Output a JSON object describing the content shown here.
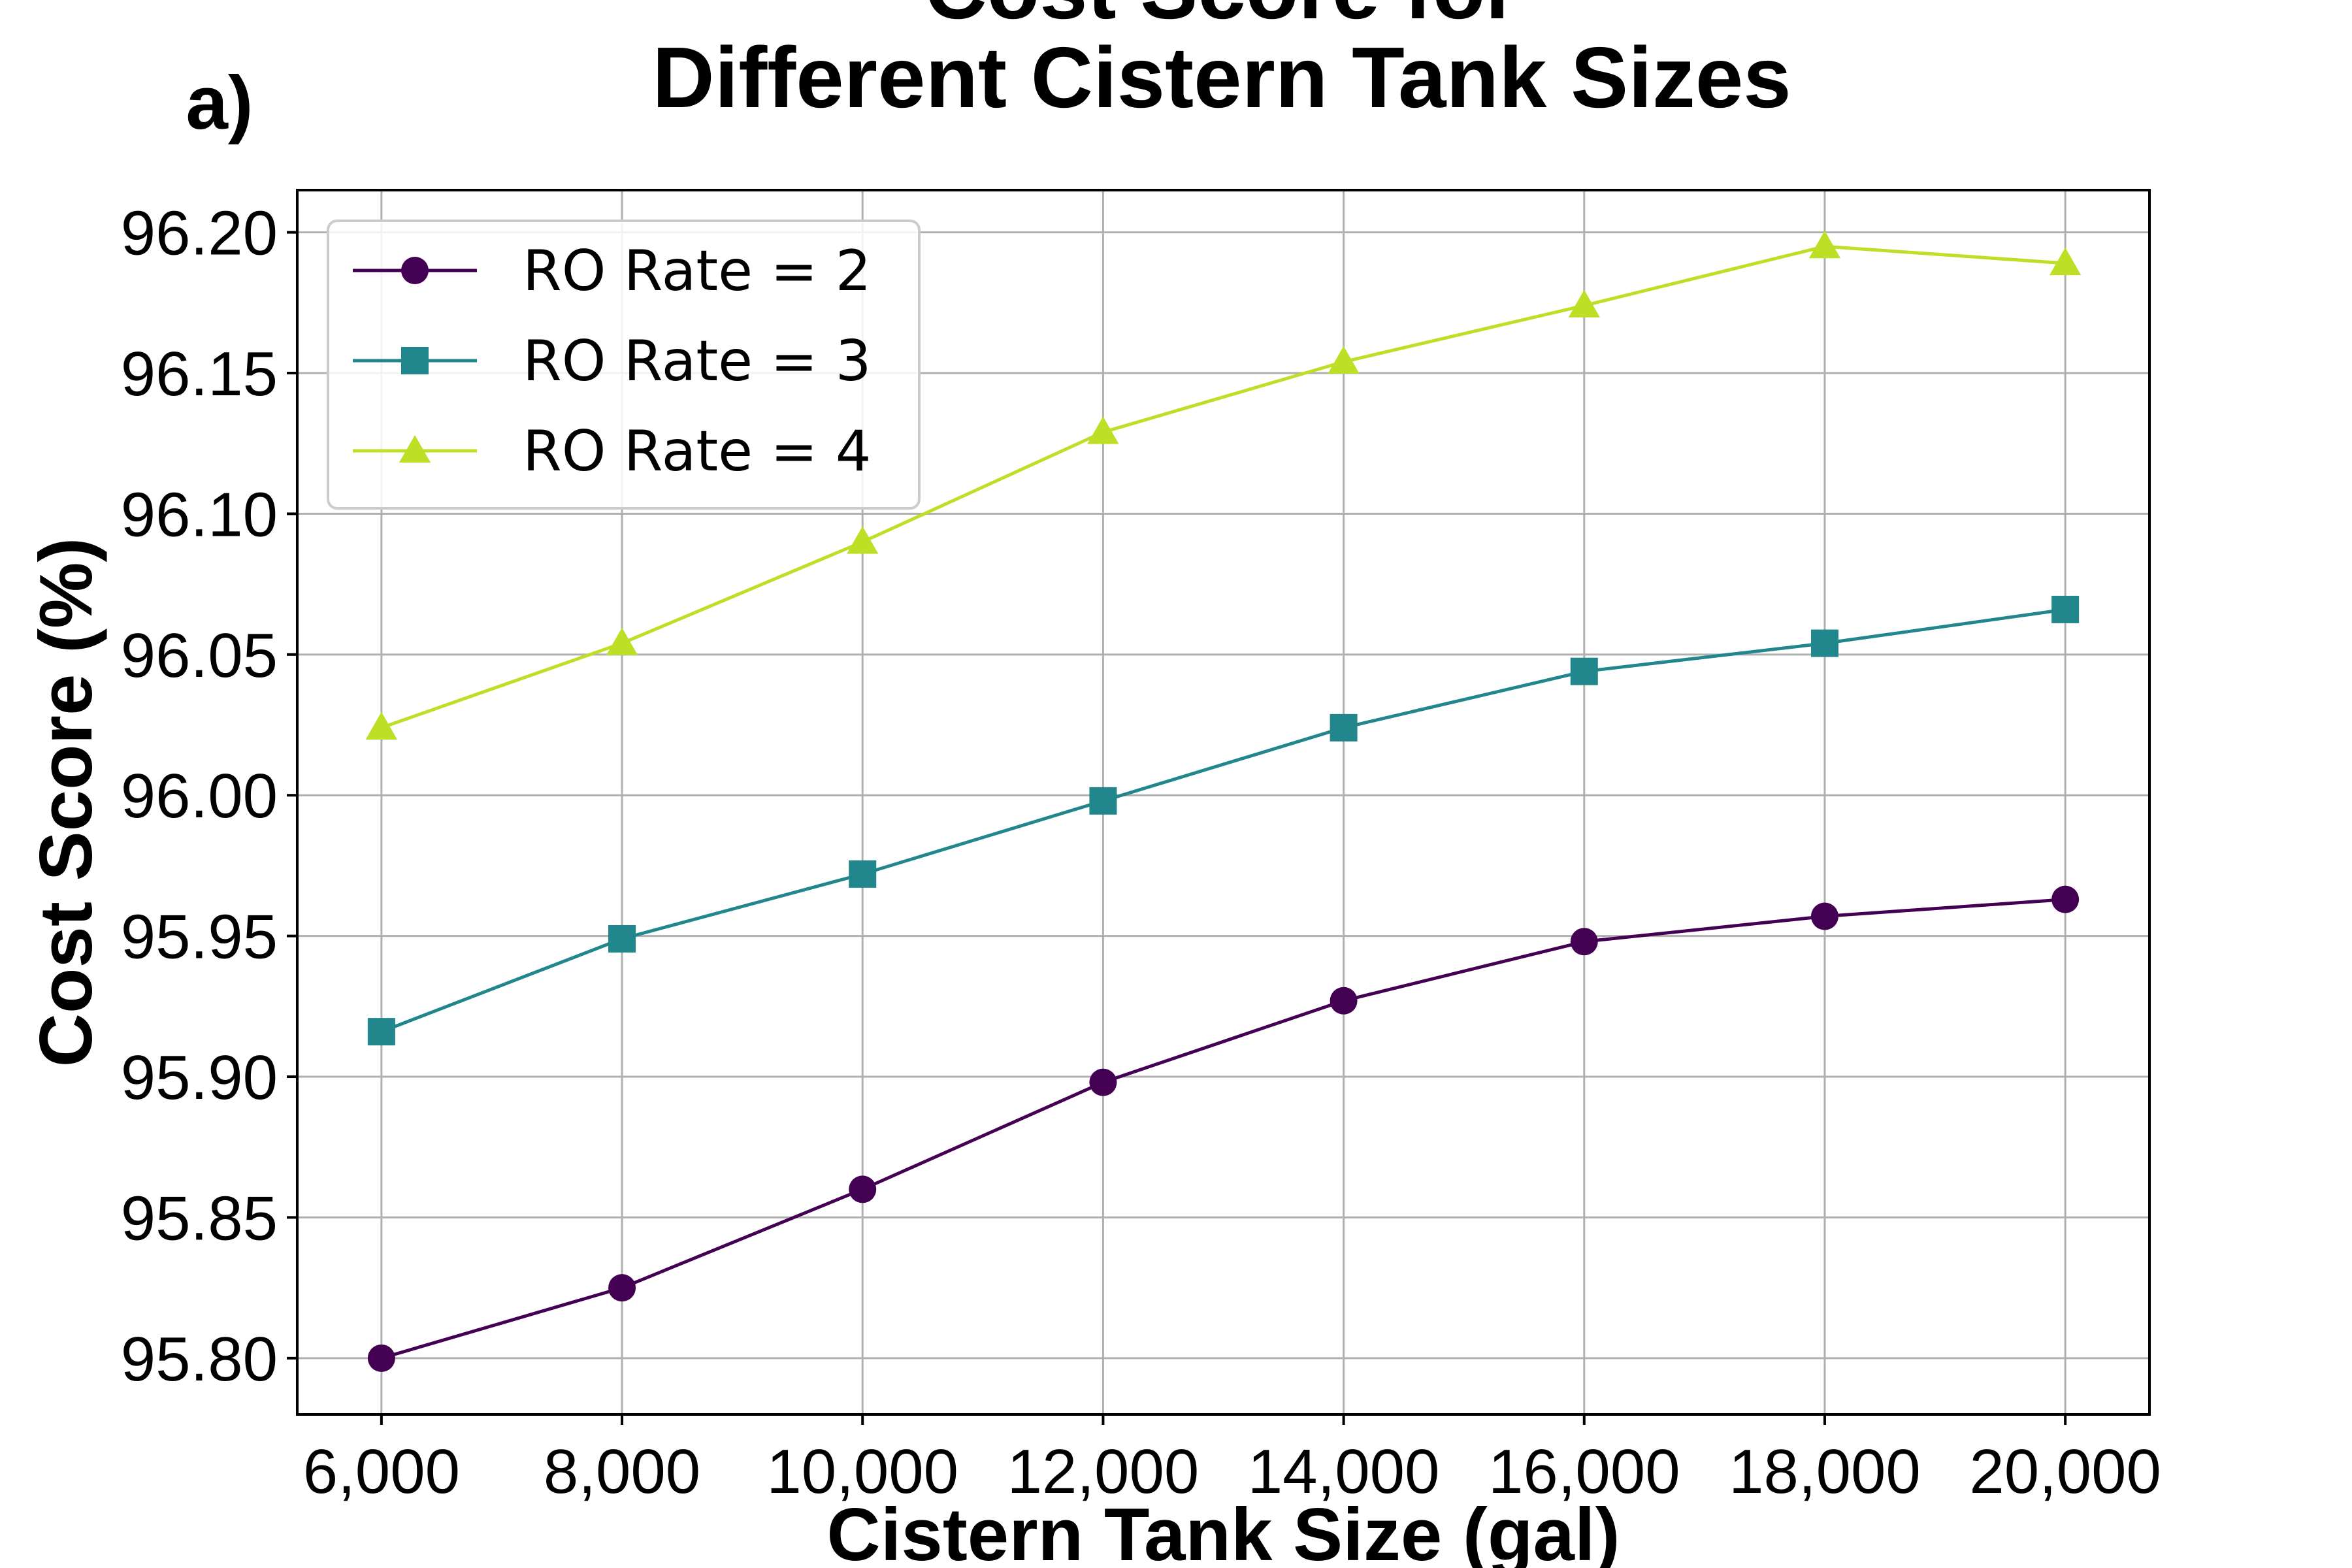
{
  "panel_label": "a)",
  "chart_data": {
    "type": "line",
    "title_lines": [
      "Cost Score for",
      "Different Cistern Tank Sizes"
    ],
    "xlabel": "Cistern Tank Size (gal)",
    "ylabel": "Cost Score (%)",
    "x": [
      6000,
      8000,
      10000,
      12000,
      14000,
      16000,
      18000,
      20000
    ],
    "x_tick_labels": [
      "6,000",
      "8,000",
      "10,000",
      "12,000",
      "14,000",
      "16,000",
      "18,000",
      "20,000"
    ],
    "y_ticks": [
      95.8,
      95.85,
      95.9,
      95.95,
      96.0,
      96.05,
      96.1,
      96.15,
      96.2
    ],
    "y_tick_labels": [
      "95.80",
      "95.85",
      "95.90",
      "95.95",
      "96.00",
      "96.05",
      "96.10",
      "96.15",
      "96.20"
    ],
    "xlim": [
      5300,
      20700
    ],
    "ylim": [
      95.78,
      96.215
    ],
    "grid": true,
    "legend_position": "top-left",
    "series": [
      {
        "name": "RO Rate = 2",
        "color": "#440154",
        "marker": "circle",
        "values": [
          95.8,
          95.825,
          95.86,
          95.898,
          95.927,
          95.948,
          95.957,
          95.963
        ]
      },
      {
        "name": "RO Rate = 3",
        "color": "#21878d",
        "marker": "square",
        "values": [
          95.916,
          95.949,
          95.972,
          95.998,
          96.024,
          96.044,
          96.054,
          96.066
        ]
      },
      {
        "name": "RO Rate = 4",
        "color": "#bddf26",
        "marker": "triangle",
        "values": [
          96.024,
          96.054,
          96.09,
          96.129,
          96.154,
          96.174,
          96.195,
          96.189
        ]
      }
    ]
  }
}
